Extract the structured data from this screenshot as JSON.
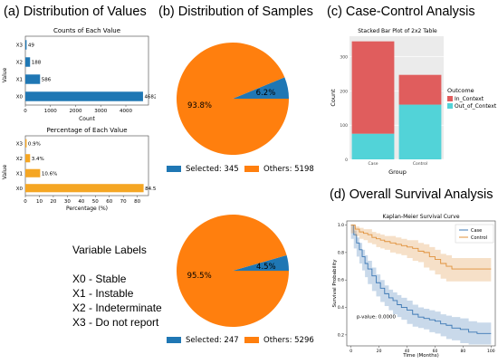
{
  "panels": {
    "a_title": "(a) Distribution of Values",
    "b_title": "(b) Distribution of Samples",
    "c_title": "(c) Case-Control Analysis",
    "d_title": "(d) Overall Survival Analysis"
  },
  "variable_labels": {
    "heading": "Variable Labels",
    "items": [
      "X0 - Stable",
      "X1 - Instable",
      "X2 - Indeterminate",
      "X3 - Do not report"
    ]
  },
  "colors": {
    "blue": "#1f77b4",
    "orange": "#ff7f0e",
    "barh_orange": "#f5a623",
    "case_red": "#e05d5d",
    "control_cyan": "#52d3d8",
    "km_case": "#3c78b4",
    "km_control": "#e0913a"
  },
  "chart_data": [
    {
      "id": "counts",
      "type": "bar",
      "orientation": "horizontal",
      "title": "Counts of Each Value",
      "xlabel": "Count",
      "ylabel": "Value",
      "categories": [
        "X0",
        "X1",
        "X2",
        "X3"
      ],
      "values": [
        4682,
        586,
        188,
        49
      ],
      "data_labels": [
        "4682",
        "586",
        "188",
        "49"
      ],
      "xlim": [
        0,
        4900
      ],
      "xticks": [
        0,
        1000,
        2000,
        3000,
        4000
      ],
      "xtick_labels": [
        "0",
        "1000",
        "2000",
        "3000",
        "4000"
      ]
    },
    {
      "id": "percentages",
      "type": "bar",
      "orientation": "horizontal",
      "title": "Percentage of Each Value",
      "xlabel": "Percentage (%)",
      "ylabel": "Value",
      "categories": [
        "X0",
        "X1",
        "X2",
        "X3"
      ],
      "values": [
        84.5,
        10.6,
        3.4,
        0.9
      ],
      "data_labels": [
        "84.5%",
        "10.6%",
        "3.4%",
        "0.9%"
      ],
      "xlim": [
        0,
        88
      ],
      "xticks": [
        0,
        10,
        20,
        30,
        40,
        50,
        60,
        70,
        80
      ],
      "xtick_labels": [
        "0",
        "10",
        "20",
        "30",
        "40",
        "50",
        "60",
        "70",
        "80"
      ]
    },
    {
      "id": "pie1",
      "type": "pie",
      "slices": [
        {
          "name": "Selected: 345",
          "value": 345,
          "label": "6.2%"
        },
        {
          "name": "Others: 5198",
          "value": 5198,
          "label": "93.8%"
        }
      ]
    },
    {
      "id": "pie2",
      "type": "pie",
      "slices": [
        {
          "name": "Selected: 247",
          "value": 247,
          "label": "4.5%"
        },
        {
          "name": "Others: 5296",
          "value": 5296,
          "label": "95.5%"
        }
      ]
    },
    {
      "id": "stacked",
      "type": "bar",
      "stacked": true,
      "title": "Stacked Bar Plot of 2x2 Table",
      "xlabel": "Group",
      "ylabel": "Count",
      "categories": [
        "Case",
        "Control"
      ],
      "series": [
        {
          "name": "Out_of_Context",
          "values": [
            75,
            160
          ]
        },
        {
          "name": "In_Context",
          "values": [
            270,
            87
          ]
        }
      ],
      "legend_title": "Outcome",
      "legend_items": [
        "In_Context",
        "Out_of_Context"
      ],
      "ylim": [
        0,
        360
      ],
      "yticks": [
        0,
        100,
        200,
        300
      ],
      "ytick_labels": [
        "0",
        "100",
        "200",
        "300"
      ]
    },
    {
      "id": "km",
      "type": "line",
      "title": "Kaplan-Meier Survival Curve",
      "xlabel": "Time (Months)",
      "ylabel": "Survival Probability",
      "annotation": "p-value: 0.0000",
      "xlim": [
        -3,
        103
      ],
      "ylim": [
        0.12,
        1.03
      ],
      "xticks": [
        0,
        20,
        40,
        60,
        80,
        100
      ],
      "xtick_labels": [
        "0",
        "20",
        "40",
        "60",
        "80",
        "100"
      ],
      "yticks": [
        0.2,
        0.4,
        0.6,
        0.8,
        1.0
      ],
      "ytick_labels": [
        "0.2",
        "0.4",
        "0.6",
        "0.8",
        "1.0"
      ],
      "series": [
        {
          "name": "Case",
          "x": [
            0,
            2,
            4,
            6,
            8,
            10,
            12,
            15,
            18,
            21,
            24,
            27,
            30,
            33,
            36,
            40,
            44,
            48,
            52,
            56,
            60,
            64,
            68,
            72,
            78,
            84,
            90,
            96,
            100
          ],
          "y": [
            1.0,
            0.93,
            0.87,
            0.82,
            0.77,
            0.72,
            0.68,
            0.63,
            0.58,
            0.54,
            0.5,
            0.47,
            0.45,
            0.42,
            0.4,
            0.38,
            0.35,
            0.33,
            0.32,
            0.31,
            0.3,
            0.28,
            0.27,
            0.25,
            0.24,
            0.22,
            0.21,
            0.21,
            0.21
          ],
          "lower": [
            1.0,
            0.9,
            0.83,
            0.77,
            0.72,
            0.67,
            0.62,
            0.57,
            0.52,
            0.48,
            0.44,
            0.41,
            0.38,
            0.35,
            0.33,
            0.31,
            0.28,
            0.26,
            0.25,
            0.24,
            0.22,
            0.21,
            0.19,
            0.17,
            0.16,
            0.14,
            0.13,
            0.13,
            0.13
          ],
          "upper": [
            1.0,
            0.96,
            0.91,
            0.87,
            0.82,
            0.78,
            0.74,
            0.69,
            0.64,
            0.6,
            0.56,
            0.53,
            0.51,
            0.49,
            0.47,
            0.45,
            0.42,
            0.4,
            0.39,
            0.38,
            0.37,
            0.35,
            0.34,
            0.33,
            0.32,
            0.3,
            0.29,
            0.29,
            0.29
          ]
        },
        {
          "name": "Control",
          "x": [
            0,
            3,
            6,
            9,
            12,
            15,
            18,
            21,
            24,
            28,
            32,
            36,
            40,
            44,
            48,
            52,
            56,
            60,
            64,
            68,
            72,
            80,
            88,
            96,
            100
          ],
          "y": [
            1.0,
            0.97,
            0.95,
            0.94,
            0.93,
            0.91,
            0.9,
            0.89,
            0.88,
            0.87,
            0.86,
            0.85,
            0.84,
            0.83,
            0.81,
            0.8,
            0.77,
            0.75,
            0.72,
            0.7,
            0.68,
            0.68,
            0.68,
            0.68,
            0.68
          ],
          "lower": [
            1.0,
            0.94,
            0.92,
            0.9,
            0.89,
            0.87,
            0.86,
            0.84,
            0.83,
            0.82,
            0.8,
            0.79,
            0.78,
            0.76,
            0.74,
            0.73,
            0.69,
            0.67,
            0.64,
            0.61,
            0.59,
            0.59,
            0.59,
            0.59,
            0.59
          ],
          "upper": [
            1.0,
            0.99,
            0.98,
            0.97,
            0.97,
            0.95,
            0.94,
            0.93,
            0.92,
            0.92,
            0.91,
            0.9,
            0.89,
            0.89,
            0.87,
            0.86,
            0.84,
            0.82,
            0.79,
            0.78,
            0.76,
            0.76,
            0.76,
            0.76,
            0.76
          ]
        }
      ],
      "legend_items": [
        "Case",
        "Control"
      ]
    }
  ]
}
